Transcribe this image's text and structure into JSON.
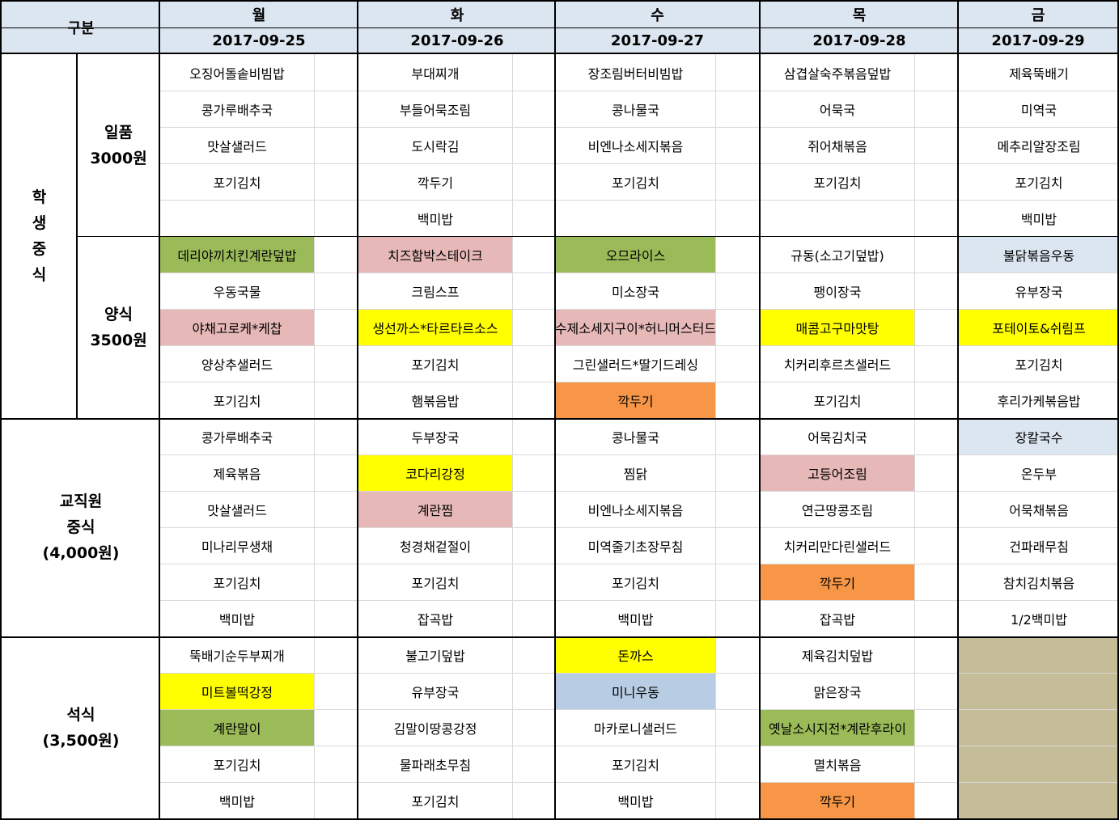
{
  "header": {
    "corner_label": "구분",
    "days": [
      {
        "day": "월",
        "date": "2017-09-25"
      },
      {
        "day": "화",
        "date": "2017-09-26"
      },
      {
        "day": "수",
        "date": "2017-09-27"
      },
      {
        "day": "목",
        "date": "2017-09-28"
      },
      {
        "day": "금",
        "date": "2017-09-29"
      }
    ]
  },
  "colors": {
    "header_bg": "#dce6f1",
    "green": "#9bbb59",
    "pink": "#e6b8b7",
    "yellow": "#ffff00",
    "orange": "#f79646",
    "light_blue": "#dce6f1",
    "blue": "#b8cce4",
    "khaki": "#c4bd97"
  },
  "sections": [
    {
      "group_label": [
        "학",
        "생",
        "중",
        "식"
      ],
      "sub_label": [
        "일품",
        "3000원"
      ],
      "rows": [
        [
          {
            "t": "오징어돌솥비빔밥"
          },
          {
            "t": "부대찌개"
          },
          {
            "t": "장조림버터비빔밥"
          },
          {
            "t": "삼겹살숙주볶음덮밥"
          },
          {
            "t": "제육뚝배기"
          }
        ],
        [
          {
            "t": "콩가루배추국"
          },
          {
            "t": "부들어묵조림"
          },
          {
            "t": "콩나물국"
          },
          {
            "t": "어묵국"
          },
          {
            "t": "미역국"
          }
        ],
        [
          {
            "t": "맛살샐러드"
          },
          {
            "t": "도시락김"
          },
          {
            "t": "비엔나소세지볶음"
          },
          {
            "t": "쥐어채볶음"
          },
          {
            "t": "메추리알장조림"
          }
        ],
        [
          {
            "t": "포기김치"
          },
          {
            "t": "깍두기"
          },
          {
            "t": "포기김치"
          },
          {
            "t": "포기김치"
          },
          {
            "t": "포기김치"
          }
        ],
        [
          {
            "t": ""
          },
          {
            "t": "백미밥"
          },
          {
            "t": ""
          },
          {
            "t": ""
          },
          {
            "t": "백미밥"
          }
        ]
      ]
    },
    {
      "sub_label": [
        "양식",
        "3500원"
      ],
      "rows": [
        [
          {
            "t": "데리야끼치킨계란덮밥",
            "c": "green"
          },
          {
            "t": "치즈함박스테이크",
            "c": "pink"
          },
          {
            "t": "오므라이스",
            "c": "green"
          },
          {
            "t": "규동(소고기덮밥)"
          },
          {
            "t": "불닭볶음우동",
            "c": "light_blue"
          }
        ],
        [
          {
            "t": "우동국물"
          },
          {
            "t": "크림스프"
          },
          {
            "t": "미소장국"
          },
          {
            "t": "팽이장국"
          },
          {
            "t": "유부장국"
          }
        ],
        [
          {
            "t": "야채고로케*케찹",
            "c": "pink"
          },
          {
            "t": "생선까스*타르타르소스",
            "c": "yellow"
          },
          {
            "t": "수제소세지구이*허니머스터드",
            "c": "pink"
          },
          {
            "t": "매콤고구마맛탕",
            "c": "yellow"
          },
          {
            "t": "포테이토&쉬림프",
            "c": "yellow"
          }
        ],
        [
          {
            "t": "양상추샐러드"
          },
          {
            "t": "포기김치"
          },
          {
            "t": "그린샐러드*딸기드레싱"
          },
          {
            "t": "치커리후르츠샐러드"
          },
          {
            "t": "포기김치"
          }
        ],
        [
          {
            "t": "포기김치"
          },
          {
            "t": "햄볶음밥"
          },
          {
            "t": "깍두기",
            "c": "orange"
          },
          {
            "t": "포기김치"
          },
          {
            "t": "후리가케볶음밥"
          }
        ]
      ]
    },
    {
      "group_label": [
        "교직원",
        "중식",
        "(4,000원)"
      ],
      "rows": [
        [
          {
            "t": "콩가루배추국"
          },
          {
            "t": "두부장국"
          },
          {
            "t": "콩나물국"
          },
          {
            "t": "어묵김치국"
          },
          {
            "t": "장칼국수",
            "c": "light_blue"
          }
        ],
        [
          {
            "t": "제육볶음"
          },
          {
            "t": "코다리강정",
            "c": "yellow"
          },
          {
            "t": "찜닭"
          },
          {
            "t": "고등어조림",
            "c": "pink"
          },
          {
            "t": "온두부"
          }
        ],
        [
          {
            "t": "맛살샐러드"
          },
          {
            "t": "계란찜",
            "c": "pink"
          },
          {
            "t": "비엔나소세지볶음"
          },
          {
            "t": "연근땅콩조림"
          },
          {
            "t": "어묵채볶음"
          }
        ],
        [
          {
            "t": "미나리무생채"
          },
          {
            "t": "청경채겉절이"
          },
          {
            "t": "미역줄기초장무침"
          },
          {
            "t": "치커리만다린샐러드"
          },
          {
            "t": "건파래무침"
          }
        ],
        [
          {
            "t": "포기김치"
          },
          {
            "t": "포기김치"
          },
          {
            "t": "포기김치"
          },
          {
            "t": "깍두기",
            "c": "orange"
          },
          {
            "t": "참치김치볶음"
          }
        ],
        [
          {
            "t": "백미밥"
          },
          {
            "t": "잡곡밥"
          },
          {
            "t": "백미밥"
          },
          {
            "t": "잡곡밥"
          },
          {
            "t": "1/2백미밥"
          }
        ]
      ]
    },
    {
      "group_label": [
        "석식",
        "(3,500원)"
      ],
      "rows": [
        [
          {
            "t": "뚝배기순두부찌개"
          },
          {
            "t": "불고기덮밥"
          },
          {
            "t": "돈까스",
            "c": "yellow"
          },
          {
            "t": "제육김치덮밥"
          },
          {
            "t": "",
            "c": "khaki"
          }
        ],
        [
          {
            "t": "미트볼떡강정",
            "c": "yellow"
          },
          {
            "t": "유부장국"
          },
          {
            "t": "미니우동",
            "c": "blue"
          },
          {
            "t": "맑은장국"
          },
          {
            "t": "",
            "c": "khaki"
          }
        ],
        [
          {
            "t": "계란말이",
            "c": "green"
          },
          {
            "t": "김말이땅콩강정"
          },
          {
            "t": "마카로니샐러드"
          },
          {
            "t": "옛날소시지전*계란후라이",
            "c": "green"
          },
          {
            "t": "",
            "c": "khaki"
          }
        ],
        [
          {
            "t": "포기김치"
          },
          {
            "t": "물파래초무침"
          },
          {
            "t": "포기김치"
          },
          {
            "t": "멸치볶음"
          },
          {
            "t": "",
            "c": "khaki"
          }
        ],
        [
          {
            "t": "백미밥"
          },
          {
            "t": "포기김치"
          },
          {
            "t": "백미밥"
          },
          {
            "t": "깍두기",
            "c": "orange"
          },
          {
            "t": "",
            "c": "khaki"
          }
        ]
      ]
    }
  ]
}
